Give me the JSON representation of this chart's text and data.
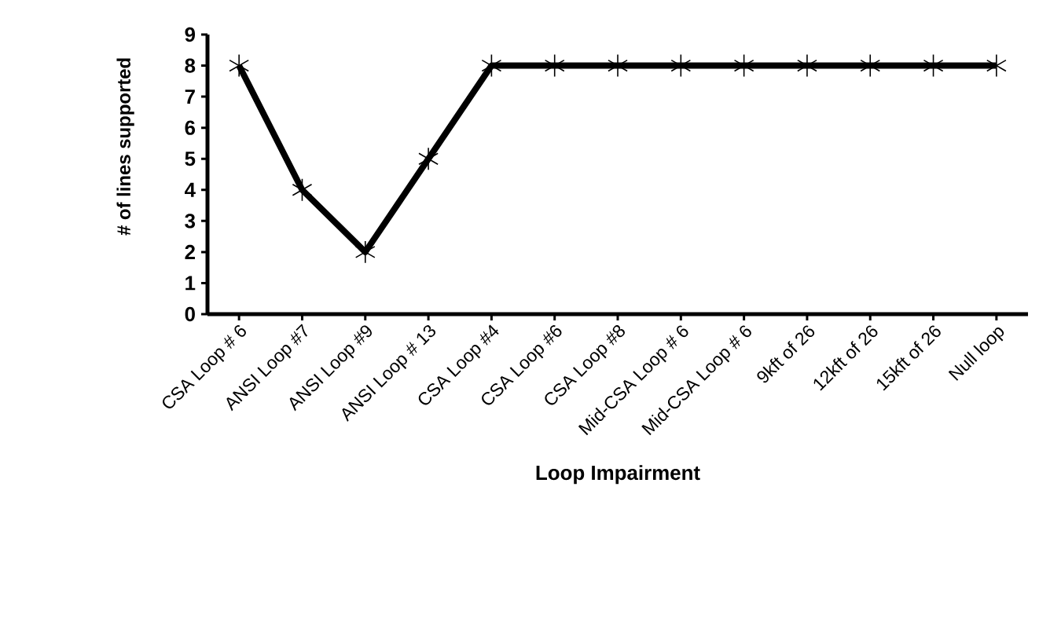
{
  "chart_data": {
    "type": "line",
    "xlabel": "Loop Impairment",
    "ylabel": "# of lines supported",
    "categories": [
      "CSA  Loop # 6",
      "ANSI Loop #7",
      "ANSI Loop #9",
      "ANSI Loop # 13",
      "CSA  Loop #4",
      "CSA  Loop #6",
      "CSA  Loop #8",
      "Mid-CSA Loop # 6",
      "Mid-CSA Loop # 6",
      "9kft of 26",
      "12kft of 26",
      "15kft of 26",
      "Null loop"
    ],
    "values": [
      8,
      4,
      2,
      5,
      8,
      8,
      8,
      8,
      8,
      8,
      8,
      8,
      8
    ],
    "color": "#000000",
    "ylim": [
      0,
      9
    ],
    "yticks": [
      0,
      1,
      2,
      3,
      4,
      5,
      6,
      7,
      8,
      9
    ],
    "marker": "cross",
    "line_style": "solid",
    "grid": false
  }
}
